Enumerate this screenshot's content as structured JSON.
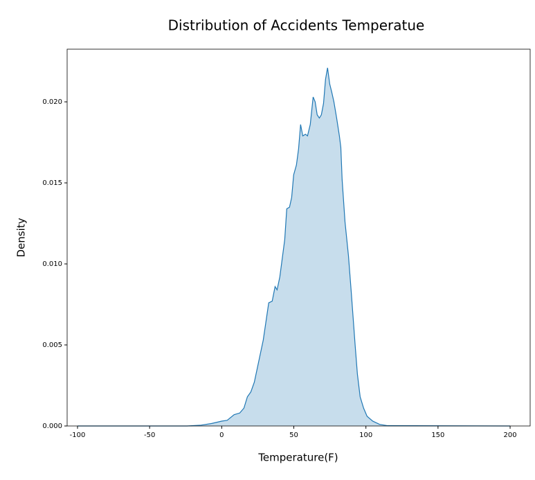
{
  "chart_data": {
    "type": "area",
    "title": "Distribution of Accidents Temperatue",
    "xlabel": "Temperature(F)",
    "ylabel": "Density",
    "series": [
      {
        "color": "#1f77b4",
        "x": [
          -100,
          -24,
          -14.4,
          -7.2,
          0,
          3.8,
          8.6,
          12.5,
          15.4,
          17.8,
          20.2,
          22.6,
          25.0,
          28.8,
          32.6,
          35.0,
          37.0,
          38.4,
          40.3,
          43.7,
          45.1,
          47.0,
          48.5,
          49.9,
          51.8,
          53.3,
          54.7,
          56.2,
          58.1,
          59.5,
          61.4,
          63.4,
          64.8,
          66.2,
          67.7,
          69.1,
          70.6,
          72.0,
          73.4,
          74.9,
          76.3,
          77.8,
          79.7,
          81.6,
          82.6,
          83.5,
          85.5,
          87.9,
          89.8,
          91.2,
          92.6,
          94.1,
          96.0,
          98.4,
          100.8,
          104.7,
          109.5,
          115,
          200
        ],
        "values": [
          0,
          0,
          5e-05,
          0.00015,
          0.0003,
          0.00035,
          0.0007,
          0.0008,
          0.0011,
          0.0018,
          0.0021,
          0.0027,
          0.0037,
          0.0053,
          0.0076,
          0.0077,
          0.0086,
          0.0084,
          0.0092,
          0.0115,
          0.0134,
          0.0135,
          0.0141,
          0.0155,
          0.0161,
          0.0171,
          0.0186,
          0.0179,
          0.018,
          0.0179,
          0.0186,
          0.0203,
          0.02,
          0.0192,
          0.019,
          0.0192,
          0.0199,
          0.0214,
          0.0221,
          0.0211,
          0.0206,
          0.02,
          0.019,
          0.0179,
          0.0172,
          0.0152,
          0.0126,
          0.0105,
          0.0083,
          0.0066,
          0.0049,
          0.0032,
          0.0018,
          0.0011,
          0.0006,
          0.0003,
          0.0001,
          2e-05,
          0
        ]
      }
    ],
    "xlim": [
      -107.2,
      213.9
    ],
    "xticks": [
      -100,
      -50,
      0,
      50,
      100,
      150,
      200
    ],
    "ylim": [
      0,
      0.02325
    ],
    "yticks": [
      {
        "value": 0,
        "label": "0.000"
      },
      {
        "value": 0.005,
        "label": "0.005"
      },
      {
        "value": 0.01,
        "label": "0.010"
      },
      {
        "value": 0.015,
        "label": "0.015"
      },
      {
        "value": 0.02,
        "label": "0.020"
      }
    ],
    "fill_alpha": 0.25
  }
}
